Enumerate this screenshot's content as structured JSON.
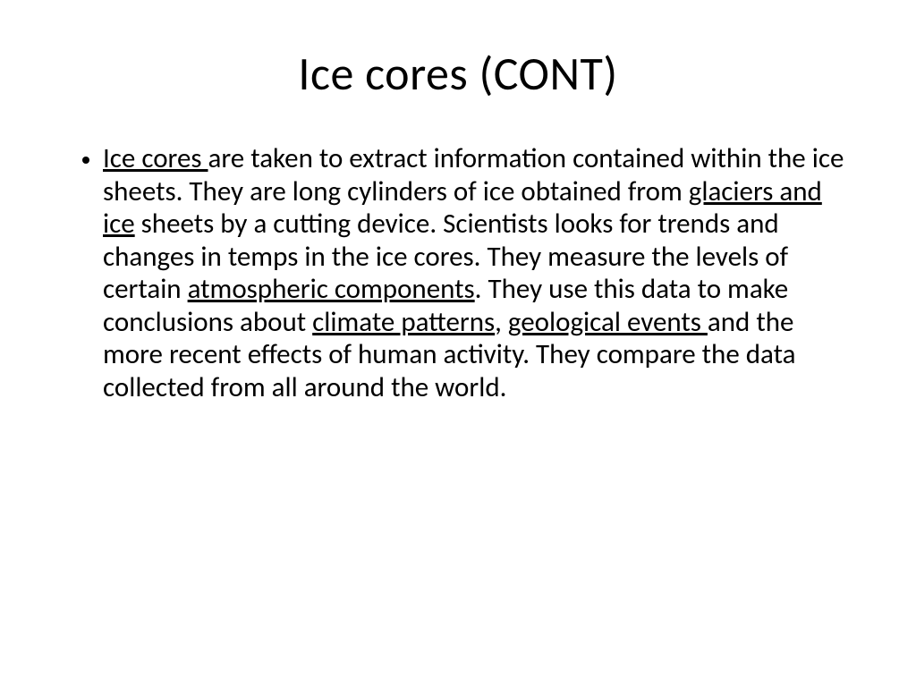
{
  "slide": {
    "title": "Ice cores (CONT)",
    "bullet": {
      "runs": [
        {
          "text": "Ice cores ",
          "underline": true
        },
        {
          "text": "are taken to extract information contained within the ice sheets.  They are long cylinders of ice obtained from ",
          "underline": false
        },
        {
          "text": "glaciers and ice",
          "underline": true
        },
        {
          "text": " sheets by a cutting device.  Scientists looks for trends and changes in temps in the ice cores.  They measure the levels of certain ",
          "underline": false
        },
        {
          "text": "atmospheric components",
          "underline": true
        },
        {
          "text": ".  They use this data to make conclusions about ",
          "underline": false
        },
        {
          "text": "climate patterns",
          "underline": true
        },
        {
          "text": ", ",
          "underline": false
        },
        {
          "text": "geological events ",
          "underline": true
        },
        {
          "text": "and the more recent effects of human activity.  They compare the data collected from all around the world.",
          "underline": false
        }
      ]
    }
  },
  "style": {
    "background_color": "#ffffff",
    "text_color": "#000000",
    "title_fontsize": 52,
    "body_fontsize": 31,
    "font_family": "Calibri"
  }
}
